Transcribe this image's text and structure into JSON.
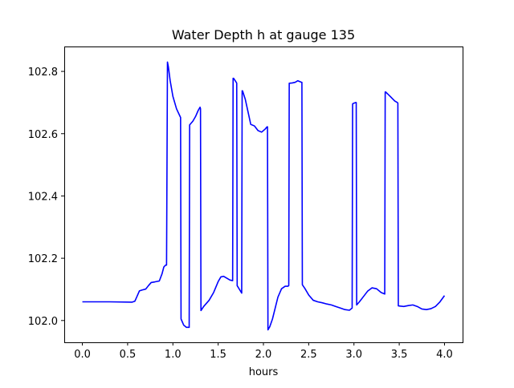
{
  "chart_data": {
    "type": "line",
    "title": "Water Depth h at gauge 135",
    "xlabel": "hours",
    "ylabel": "",
    "xlim": [
      -0.2,
      4.2
    ],
    "ylim": [
      101.93,
      102.88
    ],
    "x_ticks": [
      0.0,
      0.5,
      1.0,
      1.5,
      2.0,
      2.5,
      3.0,
      3.5,
      4.0
    ],
    "x_tick_labels": [
      "0.0",
      "0.5",
      "1.0",
      "1.5",
      "2.0",
      "2.5",
      "3.0",
      "3.5",
      "4.0"
    ],
    "y_ticks": [
      102.0,
      102.2,
      102.4,
      102.6,
      102.8
    ],
    "y_tick_labels": [
      "102.0",
      "102.2",
      "102.4",
      "102.6",
      "102.8"
    ],
    "grid": false,
    "series": [
      {
        "color": "#0000ff",
        "x": [
          0.0,
          0.3,
          0.55,
          0.58,
          0.6,
          0.63,
          0.66,
          0.7,
          0.73,
          0.76,
          0.8,
          0.85,
          0.88,
          0.9,
          0.92,
          0.93,
          0.94,
          0.95,
          0.97,
          1.0,
          1.04,
          1.08,
          1.085,
          1.09,
          1.12,
          1.15,
          1.18,
          1.185,
          1.19,
          1.22,
          1.25,
          1.28,
          1.3,
          1.305,
          1.31,
          1.34,
          1.4,
          1.45,
          1.5,
          1.53,
          1.56,
          1.6,
          1.63,
          1.66,
          1.665,
          1.67,
          1.7,
          1.705,
          1.71,
          1.76,
          1.765,
          1.77,
          1.8,
          1.83,
          1.86,
          1.9,
          1.94,
          1.98,
          2.02,
          2.04,
          2.045,
          2.05,
          2.07,
          2.1,
          2.13,
          2.16,
          2.2,
          2.24,
          2.27,
          2.28,
          2.285,
          2.29,
          2.32,
          2.35,
          2.38,
          2.42,
          2.425,
          2.43,
          2.46,
          2.5,
          2.55,
          2.6,
          2.65,
          2.7,
          2.75,
          2.8,
          2.85,
          2.9,
          2.95,
          2.98,
          2.985,
          2.99,
          3.02,
          3.025,
          3.03,
          3.06,
          3.1,
          3.15,
          3.2,
          3.25,
          3.3,
          3.34,
          3.345,
          3.35,
          3.4,
          3.45,
          3.48,
          3.485,
          3.49,
          3.55,
          3.6,
          3.65,
          3.7,
          3.75,
          3.8,
          3.85,
          3.9,
          3.95,
          4.0
        ],
        "values": [
          102.06,
          102.06,
          102.059,
          102.062,
          102.075,
          102.095,
          102.098,
          102.101,
          102.112,
          102.122,
          102.124,
          102.127,
          102.15,
          102.172,
          102.178,
          102.178,
          102.83,
          102.815,
          102.77,
          102.72,
          102.68,
          102.655,
          102.652,
          102.005,
          101.985,
          101.978,
          101.978,
          102.628,
          102.63,
          102.64,
          102.655,
          102.675,
          102.685,
          102.68,
          102.032,
          102.045,
          102.065,
          102.09,
          102.125,
          102.14,
          102.142,
          102.135,
          102.13,
          102.128,
          102.778,
          102.778,
          102.765,
          102.762,
          102.112,
          102.088,
          102.738,
          102.737,
          102.71,
          102.67,
          102.63,
          102.625,
          102.61,
          102.605,
          102.615,
          102.622,
          102.622,
          101.97,
          101.98,
          102.005,
          102.04,
          102.075,
          102.102,
          102.11,
          102.11,
          102.112,
          102.762,
          102.762,
          102.763,
          102.765,
          102.77,
          102.765,
          102.765,
          102.115,
          102.102,
          102.082,
          102.065,
          102.06,
          102.057,
          102.053,
          102.05,
          102.045,
          102.04,
          102.035,
          102.033,
          102.04,
          102.695,
          102.697,
          102.7,
          102.7,
          102.05,
          102.06,
          102.075,
          102.094,
          102.105,
          102.102,
          102.09,
          102.085,
          102.734,
          102.734,
          102.72,
          102.705,
          102.7,
          102.698,
          102.047,
          102.045,
          102.048,
          102.05,
          102.045,
          102.037,
          102.035,
          102.038,
          102.045,
          102.06,
          102.08
        ]
      }
    ]
  }
}
